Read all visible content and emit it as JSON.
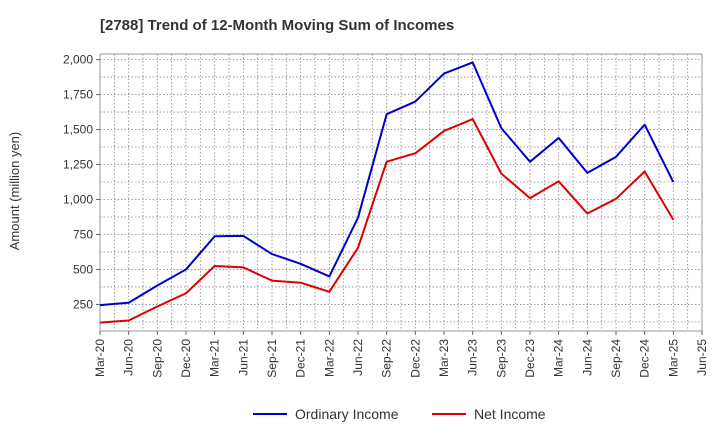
{
  "chart_data": {
    "type": "line",
    "title": "[2788]  Trend of 12-Month Moving Sum of Incomes",
    "xlabel": "",
    "ylabel": "Amount (million yen)",
    "ylim": [
      60,
      2040
    ],
    "yticks": [
      250,
      500,
      750,
      1000,
      1250,
      1500,
      1750,
      2000
    ],
    "ytick_labels": [
      "250",
      "500",
      "750",
      "1,000",
      "1,250",
      "1,500",
      "1,750",
      "2,000"
    ],
    "categories": [
      "Mar-20",
      "Jun-20",
      "Sep-20",
      "Dec-20",
      "Mar-21",
      "Jun-21",
      "Sep-21",
      "Dec-21",
      "Mar-22",
      "Jun-22",
      "Sep-22",
      "Dec-22",
      "Mar-23",
      "Jun-23",
      "Sep-23",
      "Dec-23",
      "Mar-24",
      "Jun-24",
      "Sep-24",
      "Dec-24",
      "Mar-25",
      "Jun-25"
    ],
    "grid": true,
    "legend_position": "bottom",
    "series": [
      {
        "name": "Ordinary Income",
        "color": "#0000cc",
        "values": [
          245,
          262,
          385,
          500,
          737,
          740,
          610,
          540,
          450,
          870,
          1610,
          1700,
          1900,
          1980,
          1510,
          1270,
          1440,
          1190,
          1305,
          1535,
          1125,
          null
        ]
      },
      {
        "name": "Net Income",
        "color": "#dd0000",
        "values": [
          120,
          135,
          235,
          330,
          525,
          515,
          420,
          405,
          340,
          655,
          1270,
          1330,
          1490,
          1575,
          1185,
          1010,
          1130,
          900,
          1005,
          1200,
          855,
          null
        ]
      }
    ]
  }
}
